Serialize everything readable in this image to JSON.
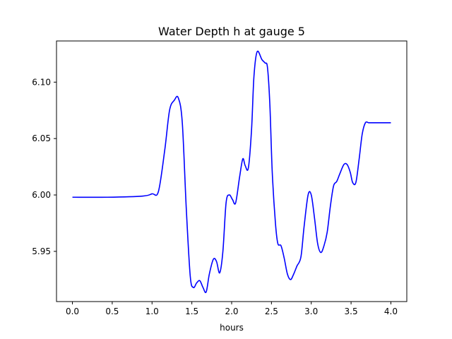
{
  "chart_data": {
    "type": "line",
    "title": "Water Depth h at gauge 5",
    "xlabel": "hours",
    "ylabel": "",
    "xlim": [
      -0.2,
      4.2
    ],
    "ylim": [
      5.9055,
      6.1365
    ],
    "grid": false,
    "x_ticks": [
      0.0,
      0.5,
      1.0,
      1.5,
      2.0,
      2.5,
      3.0,
      3.5,
      4.0
    ],
    "x_tick_labels": [
      "0.0",
      "0.5",
      "1.0",
      "1.5",
      "2.0",
      "2.5",
      "3.0",
      "3.5",
      "4.0"
    ],
    "y_ticks": [
      5.95,
      6.0,
      6.05,
      6.1
    ],
    "y_tick_labels": [
      "5.95",
      "6.00",
      "6.05",
      "6.10"
    ],
    "series": [
      {
        "color": "#0000ff",
        "x": [
          0.0,
          0.44,
          0.88,
          1.0,
          1.08,
          1.16,
          1.22,
          1.28,
          1.33,
          1.38,
          1.43,
          1.48,
          1.52,
          1.56,
          1.6,
          1.64,
          1.68,
          1.72,
          1.77,
          1.81,
          1.85,
          1.89,
          1.93,
          1.97,
          2.01,
          2.05,
          2.1,
          2.14,
          2.17,
          2.21,
          2.25,
          2.28,
          2.32,
          2.38,
          2.42,
          2.45,
          2.48,
          2.51,
          2.55,
          2.58,
          2.62,
          2.66,
          2.7,
          2.74,
          2.78,
          2.82,
          2.87,
          2.91,
          2.96,
          3.0,
          3.04,
          3.08,
          3.12,
          3.16,
          3.2,
          3.24,
          3.28,
          3.32,
          3.36,
          3.41,
          3.45,
          3.49,
          3.52,
          3.56,
          3.6,
          3.64,
          3.68,
          3.72,
          3.76,
          3.8,
          3.83,
          3.87,
          3.91,
          3.95,
          4.0
        ],
        "y": [
          5.998,
          5.998,
          5.999,
          6.001,
          6.003,
          6.04,
          6.075,
          6.084,
          6.086,
          6.064,
          5.988,
          5.928,
          5.918,
          5.922,
          5.924,
          5.918,
          5.914,
          5.93,
          5.943,
          5.941,
          5.931,
          5.95,
          5.993,
          6.0,
          5.996,
          5.993,
          6.016,
          6.032,
          6.026,
          6.024,
          6.058,
          6.105,
          6.127,
          6.12,
          6.117,
          6.113,
          6.08,
          6.02,
          5.975,
          5.957,
          5.955,
          5.944,
          5.93,
          5.925,
          5.93,
          5.937,
          5.945,
          5.972,
          6.0,
          6.0,
          5.98,
          5.957,
          5.949,
          5.955,
          5.967,
          5.99,
          6.008,
          6.012,
          6.019,
          6.027,
          6.027,
          6.02,
          6.011,
          6.011,
          6.031,
          6.054,
          6.064,
          6.064,
          6.064,
          6.064,
          6.064,
          6.064,
          6.064,
          6.064,
          6.064
        ]
      }
    ]
  }
}
